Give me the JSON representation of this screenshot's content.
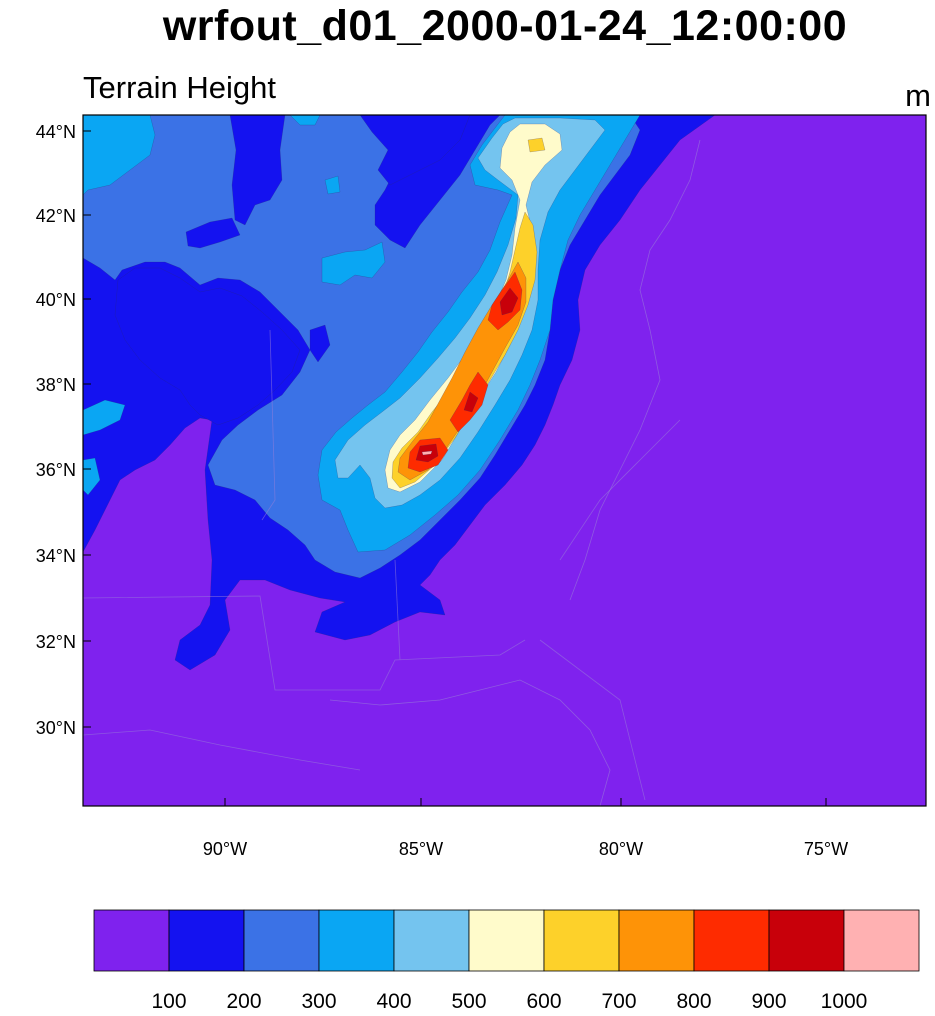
{
  "title": "wrfout_d01_2000-01-24_12:00:00",
  "field_label": "Terrain Height",
  "units": "m",
  "chart_data": {
    "type": "contour-map",
    "variable": "Terrain Height",
    "units": "m",
    "lat_ticks": [
      "30°N",
      "32°N",
      "34°N",
      "36°N",
      "38°N",
      "40°N",
      "42°N",
      "44°N"
    ],
    "lon_ticks": [
      "90°W",
      "85°W",
      "80°W",
      "75°W"
    ],
    "levels": [
      100,
      200,
      300,
      400,
      500,
      600,
      700,
      800,
      900,
      1000
    ],
    "colors": [
      "#7f22ee",
      "#1412f0",
      "#3b72e6",
      "#0aa6f3",
      "#74c4ef",
      "#fffbcb",
      "#fdd12a",
      "#fe9307",
      "#fe2b00",
      "#c8000a",
      "#ffb1b2"
    ],
    "colorbar_labels": [
      "100",
      "200",
      "300",
      "400",
      "500",
      "600",
      "700",
      "800",
      "900",
      "1000"
    ]
  }
}
